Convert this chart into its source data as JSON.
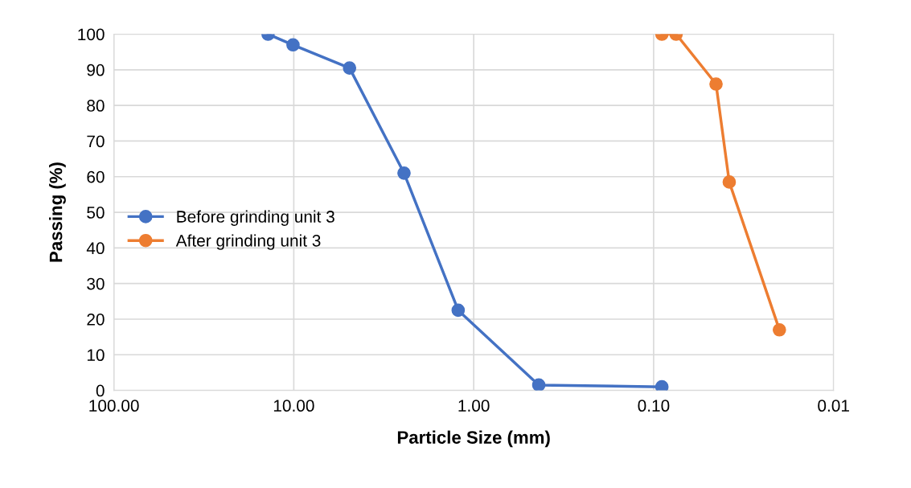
{
  "chart_data": {
    "type": "line",
    "xlabel": "Particle Size (mm)",
    "ylabel": "Passing (%)",
    "log": "x",
    "xlim": [
      100,
      0.01
    ],
    "xticks": [
      {
        "value": 100,
        "label": "100.00"
      },
      {
        "value": 10,
        "label": "10.00"
      },
      {
        "value": 1,
        "label": "1.00"
      },
      {
        "value": 0.1,
        "label": "0.10"
      },
      {
        "value": 0.01,
        "label": "0.01"
      }
    ],
    "ylim": [
      0,
      100
    ],
    "yticks": [
      0,
      10,
      20,
      30,
      40,
      50,
      60,
      70,
      80,
      90,
      100
    ],
    "grid": true,
    "legend": "center left",
    "marker": "circle",
    "line_style": "solid",
    "series": [
      {
        "name": "Before grinding unit 3",
        "color": "#4472c4",
        "x": [
          13.9,
          10.1,
          4.9,
          2.44,
          1.22,
          0.435,
          0.09
        ],
        "values": [
          100,
          97,
          90.5,
          61,
          22.5,
          1.5,
          1
        ]
      },
      {
        "name": "After grinding unit 3",
        "color": "#ed7d31",
        "x": [
          0.09,
          0.075,
          0.045,
          0.038,
          0.02
        ],
        "values": [
          100,
          100,
          86,
          58.5,
          17
        ]
      }
    ]
  }
}
